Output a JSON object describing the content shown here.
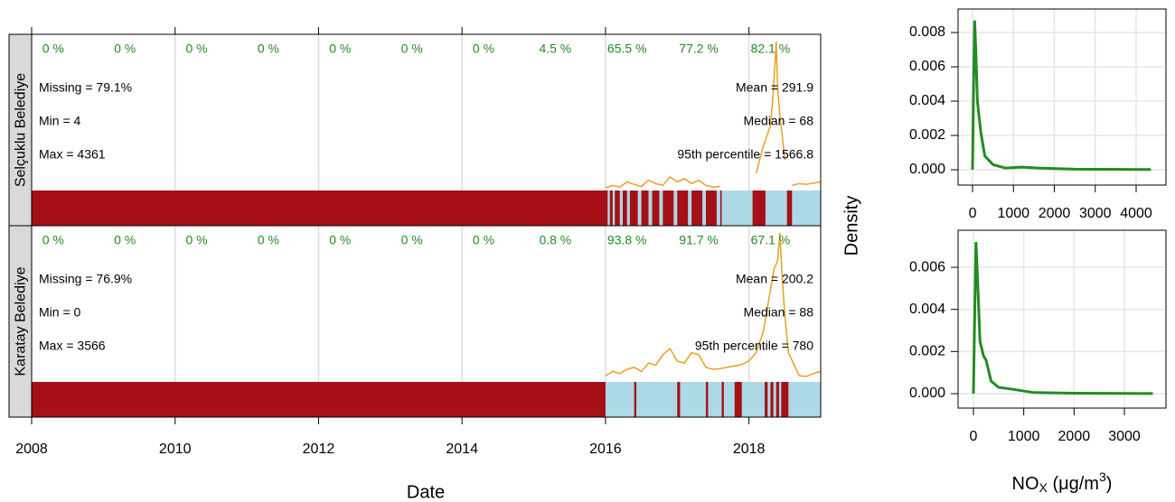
{
  "chart_data": [
    {
      "type": "summary",
      "xlabel": "Date",
      "xlim": [
        2008,
        2019
      ],
      "xticks": [
        2008,
        2010,
        2012,
        2014,
        2016,
        2018
      ],
      "line_color": "#e6a11f",
      "missing_color": "#a50f15",
      "present_color": "#add8e6",
      "panels": [
        {
          "name": "Selçuklu Belediye",
          "year_labels": [
            "0 %",
            "0 %",
            "0 %",
            "0 %",
            "0 %",
            "0 %",
            "0 %",
            "4.5 %",
            "65.5 %",
            "77.2 %",
            "82.1 %"
          ],
          "stats_left": [
            "Missing = 79.1%",
            "Min = 4",
            "Max = 4361"
          ],
          "stats_right": [
            "Mean = 291.9",
            "Median = 68",
            "95th percentile = 1566.8"
          ],
          "x": [
            2016.0,
            2016.1,
            2016.2,
            2016.3,
            2016.4,
            2016.5,
            2016.6,
            2016.7,
            2016.8,
            2016.9,
            2017.0,
            2017.1,
            2017.2,
            2017.3,
            2017.4,
            2017.5,
            2017.6,
            2018.05,
            2018.1,
            2018.15,
            2018.2,
            2018.25,
            2018.3,
            2018.33,
            2018.36,
            2018.38,
            2018.4,
            2018.43,
            2018.47,
            2018.5,
            2018.53,
            2018.6,
            2018.7,
            2018.8,
            2018.9,
            2019.0
          ],
          "values": [
            80,
            150,
            100,
            250,
            180,
            120,
            300,
            200,
            150,
            400,
            250,
            350,
            200,
            300,
            150,
            100,
            120,
            null,
            500,
            900,
            1300,
            1600,
            1900,
            2600,
            3600,
            4361,
            3000,
            2200,
            1500,
            900,
            null,
            150,
            200,
            180,
            220,
            250
          ],
          "present": [
            [
              2016.03,
              2016.06
            ],
            [
              2016.1,
              2016.13
            ],
            [
              2016.2,
              2016.24
            ],
            [
              2016.3,
              2016.34
            ],
            [
              2016.45,
              2016.5
            ],
            [
              2016.6,
              2016.65
            ],
            [
              2016.75,
              2016.8
            ],
            [
              2016.95,
              2017.0
            ],
            [
              2017.15,
              2017.2
            ],
            [
              2017.35,
              2017.4
            ],
            [
              2017.55,
              2017.6
            ],
            [
              2017.62,
              2018.05
            ],
            [
              2018.23,
              2018.53
            ],
            [
              2018.6,
              2019.0
            ]
          ]
        },
        {
          "name": "Karatay Belediye",
          "year_labels": [
            "0 %",
            "0 %",
            "0 %",
            "0 %",
            "0 %",
            "0 %",
            "0 %",
            "0.8 %",
            "93.8 %",
            "91.7 %",
            "67.1 %"
          ],
          "stats_left": [
            "Missing = 76.9%",
            "Min = 0"
          ],
          "stats_left_last": "Max = 3566",
          "stats_right": [
            "Mean = 200.2",
            "Median = 88",
            "95th percentile = 780"
          ],
          "x": [
            2016.0,
            2016.1,
            2016.2,
            2016.3,
            2016.4,
            2016.5,
            2016.6,
            2016.7,
            2016.8,
            2016.9,
            2017.0,
            2017.1,
            2017.2,
            2017.3,
            2017.4,
            2017.5,
            2017.6,
            2017.7,
            2017.8,
            2017.9,
            2018.0,
            2018.1,
            2018.2,
            2018.25,
            2018.3,
            2018.35,
            2018.4,
            2018.43,
            2018.46,
            2018.5,
            2018.55,
            2018.7,
            2018.8,
            2018.9,
            2019.0
          ],
          "values": [
            150,
            250,
            200,
            300,
            350,
            250,
            450,
            400,
            650,
            800,
            500,
            450,
            700,
            650,
            350,
            300,
            320,
            350,
            380,
            420,
            500,
            700,
            1200,
            1700,
            2200,
            2700,
            2900,
            3566,
            2600,
            1600,
            700,
            150,
            130,
            200,
            250
          ],
          "present": [
            [
              2016.0,
              2016.4
            ],
            [
              2016.43,
              2017.0
            ],
            [
              2017.04,
              2017.4
            ],
            [
              2017.43,
              2017.62
            ],
            [
              2017.65,
              2017.8
            ],
            [
              2017.9,
              2018.22
            ],
            [
              2018.26,
              2018.3
            ],
            [
              2018.34,
              2018.38
            ],
            [
              2018.42,
              2018.45
            ],
            [
              2018.55,
              2019.0
            ]
          ]
        }
      ]
    },
    {
      "type": "density",
      "ylabel": "Density",
      "xlabel_parts": [
        "NO",
        "X",
        " (μg/m",
        "3",
        ")"
      ],
      "color": "#228b22",
      "plots": [
        {
          "xlim": [
            -354,
            4729
          ],
          "xticks": [
            0,
            1000,
            2000,
            3000,
            4000
          ],
          "ylim": [
            -0.000895,
            0.00937
          ],
          "yticks": [
            {
              "value": 0,
              "label": "0.000"
            },
            {
              "value": 0.002,
              "label": "0.002"
            },
            {
              "value": 0.004,
              "label": "0.004"
            },
            {
              "value": 0.006,
              "label": "0.006"
            },
            {
              "value": 0.008,
              "label": "0.008"
            }
          ],
          "x": [
            0,
            20,
            50,
            80,
            120,
            200,
            300,
            500,
            800,
            1200,
            1600,
            2500,
            4361
          ],
          "values": [
            0,
            0.004,
            0.0087,
            0.007,
            0.004,
            0.0022,
            0.0008,
            0.0003,
            0.0001,
            0.00015,
            0.0001,
            3e-05,
            1e-05
          ]
        },
        {
          "xlim": [
            -305,
            3826
          ],
          "xticks": [
            0,
            1000,
            2000,
            3000
          ],
          "ylim": [
            -0.000686,
            0.00776
          ],
          "yticks": [
            {
              "value": 0,
              "label": "0.000"
            },
            {
              "value": 0.002,
              "label": "0.002"
            },
            {
              "value": 0.004,
              "label": "0.004"
            },
            {
              "value": 0.006,
              "label": "0.006"
            }
          ],
          "x": [
            0,
            20,
            50,
            90,
            130,
            200,
            250,
            350,
            500,
            800,
            1200,
            2000,
            3566
          ],
          "values": [
            0,
            0.003,
            0.0072,
            0.005,
            0.0025,
            0.0018,
            0.0016,
            0.0006,
            0.0003,
            0.0002,
            5e-05,
            2e-05,
            5e-06
          ]
        }
      ]
    }
  ]
}
